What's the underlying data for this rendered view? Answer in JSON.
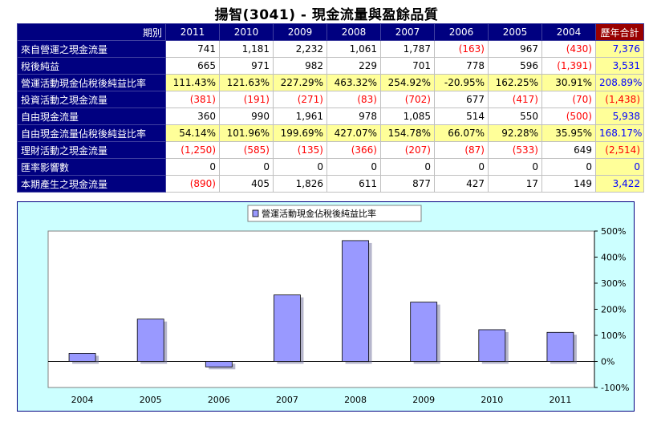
{
  "page": {
    "title": "揚智(3041) -  現金流量與盈餘品質"
  },
  "table": {
    "period_label": "期別",
    "years": [
      "2011",
      "2010",
      "2009",
      "2008",
      "2007",
      "2006",
      "2005",
      "2004"
    ],
    "total_label": "歷年合計",
    "rows": [
      {
        "label": "來自營運之現金流量",
        "values": [
          "741",
          "1,181",
          "2,232",
          "1,061",
          "1,787",
          "(163)",
          "967",
          "(430)"
        ],
        "total": "7,376",
        "ratio": false
      },
      {
        "label": "稅後純益",
        "values": [
          "665",
          "971",
          "982",
          "229",
          "701",
          "778",
          "596",
          "(1,391)"
        ],
        "total": "3,531",
        "ratio": false
      },
      {
        "label": "營運活動現金佔稅後純益比率",
        "values": [
          "111.43%",
          "121.63%",
          "227.29%",
          "463.32%",
          "254.92%",
          "-20.95%",
          "162.25%",
          "30.91%"
        ],
        "total": "208.89%",
        "ratio": true
      },
      {
        "label": "投資活動之現金流量",
        "values": [
          "(381)",
          "(191)",
          "(271)",
          "(83)",
          "(702)",
          "677",
          "(417)",
          "(70)"
        ],
        "total": "(1,438)",
        "ratio": false
      },
      {
        "label": "自由現金流量",
        "values": [
          "360",
          "990",
          "1,961",
          "978",
          "1,085",
          "514",
          "550",
          "(500)"
        ],
        "total": "5,938",
        "ratio": false
      },
      {
        "label": "自由現金流量佔稅後純益比率",
        "values": [
          "54.14%",
          "101.96%",
          "199.69%",
          "427.07%",
          "154.78%",
          "66.07%",
          "92.28%",
          "35.95%"
        ],
        "total": "168.17%",
        "ratio": true
      },
      {
        "label": "理財活動之現金流量",
        "values": [
          "(1,250)",
          "(585)",
          "(135)",
          "(366)",
          "(207)",
          "(87)",
          "(533)",
          "649"
        ],
        "total": "(2,514)",
        "ratio": false
      },
      {
        "label": "匯率影響數",
        "values": [
          "0",
          "0",
          "0",
          "0",
          "0",
          "0",
          "0",
          "0"
        ],
        "total": "0",
        "ratio": false
      },
      {
        "label": "本期產生之現金流量",
        "values": [
          "(890)",
          "405",
          "1,826",
          "611",
          "877",
          "427",
          "17",
          "149"
        ],
        "total": "3,422",
        "ratio": false
      }
    ]
  },
  "colors": {
    "header_bg": "#000080",
    "total_header_bg": "#990000",
    "highlight_bg": "#ffff99",
    "negative_text": "#ff0000",
    "total_text": "#0000ff",
    "chart_bg": "#ccffff",
    "bar_fill": "#9999ff"
  },
  "chart_data": {
    "type": "bar",
    "categories": [
      "2004",
      "2005",
      "2006",
      "2007",
      "2008",
      "2009",
      "2010",
      "2011"
    ],
    "series": [
      {
        "name": "營運活動現金佔稅後純益比率",
        "values": [
          30.91,
          162.25,
          -20.95,
          254.92,
          463.32,
          227.29,
          121.63,
          111.43
        ]
      }
    ],
    "ylim": [
      -100,
      500
    ],
    "yticks": [
      -100,
      0,
      100,
      200,
      300,
      400,
      500
    ],
    "ytick_labels": [
      "-100%",
      "0%",
      "100%",
      "200%",
      "300%",
      "400%",
      "500%"
    ],
    "legend_position": "top-center",
    "grid": false,
    "axis_side": "right"
  }
}
